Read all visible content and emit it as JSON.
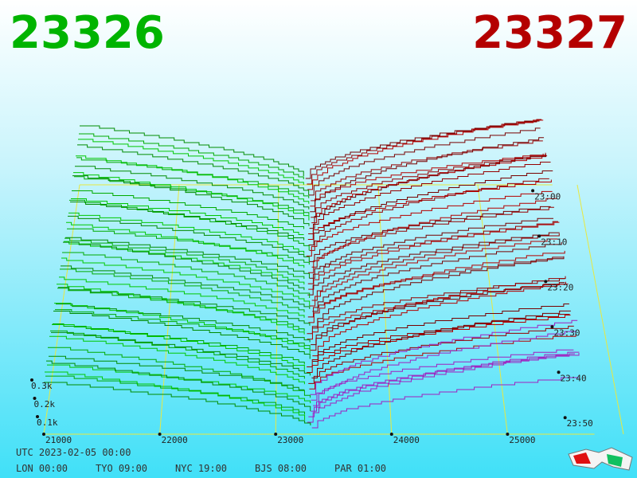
{
  "bid": "23326",
  "ask": "23327",
  "price_axis": [
    "21000",
    "22000",
    "23000",
    "24000",
    "25000"
  ],
  "time_axis": [
    "23:00",
    "23:10",
    "23:20",
    "23:30",
    "23:40",
    "23:50"
  ],
  "depth_axis": [
    "0.3k",
    "0.2k",
    "0.1k"
  ],
  "utc": "UTC 2023-02-05 00:00",
  "clocks": [
    "LON 00:00",
    "TYO 09:00",
    "NYC 19:00",
    "BJS 08:00",
    "PAR 01:00"
  ]
}
